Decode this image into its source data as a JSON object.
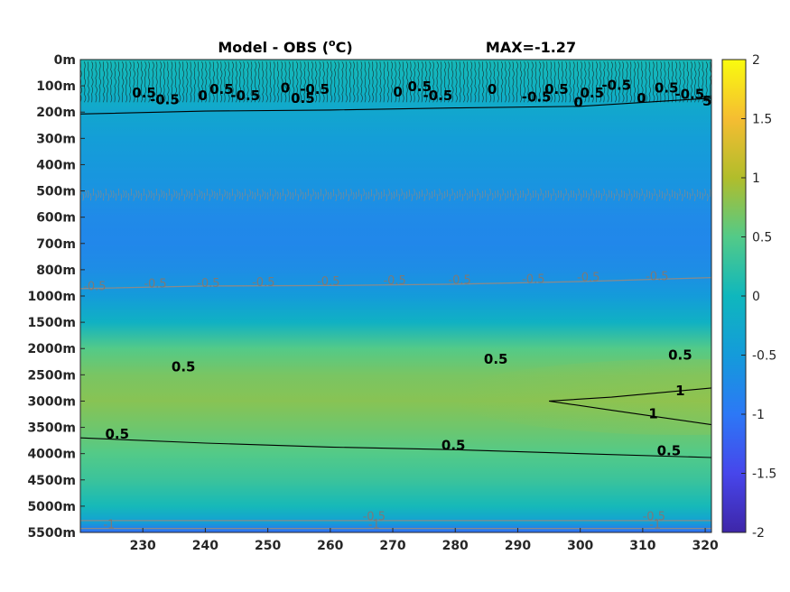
{
  "chart_data": {
    "type": "heatmap",
    "title": "Model - OBS (",
    "title_sup": "o",
    "title_unit": "C)",
    "max_label": "MAX=-1.27",
    "x": {
      "range": [
        220,
        321
      ],
      "ticks": [
        230,
        240,
        250,
        260,
        270,
        280,
        290,
        300,
        310,
        320
      ]
    },
    "y": {
      "depth_labels": [
        "0m",
        "100m",
        "200m",
        "300m",
        "400m",
        "500m",
        "600m",
        "700m",
        "800m",
        "1000m",
        "1500m",
        "2000m",
        "2500m",
        "3000m",
        "3500m",
        "4000m",
        "4500m",
        "5000m",
        "5500m"
      ]
    },
    "colorbar": {
      "range": [
        -2,
        2
      ],
      "ticks": [
        "2",
        "1.5",
        "1",
        "0.5",
        "0",
        "-0.5",
        "-1",
        "-1.5",
        "-2"
      ]
    },
    "value_profile": [
      {
        "level": 0.0,
        "value": 0.05
      },
      {
        "level": 1.2,
        "value": -0.1
      },
      {
        "level": 2.0,
        "value": -0.3
      },
      {
        "level": 3.0,
        "value": -0.45
      },
      {
        "level": 5.0,
        "value": -0.62
      },
      {
        "level": 6.0,
        "value": -0.75
      },
      {
        "level": 7.0,
        "value": -0.78
      },
      {
        "level": 8.0,
        "value": -0.7
      },
      {
        "level": 9.0,
        "value": -0.5
      },
      {
        "level": 10.0,
        "value": -0.1
      },
      {
        "level": 11.0,
        "value": 0.5
      },
      {
        "level": 12.0,
        "value": 0.7
      },
      {
        "level": 13.0,
        "value": 0.78
      },
      {
        "level": 14.0,
        "value": 0.65
      },
      {
        "level": 15.0,
        "value": 0.5
      },
      {
        "level": 16.0,
        "value": 0.32
      },
      {
        "level": 17.0,
        "value": 0.05
      },
      {
        "level": 17.6,
        "value": -0.4
      },
      {
        "level": 18.0,
        "value": -1.1
      }
    ],
    "contours": [
      {
        "value": 0.5,
        "style": "black",
        "points": [
          [
            220,
            2.07
          ],
          [
            240,
            1.96
          ],
          [
            260,
            1.92
          ],
          [
            280,
            1.84
          ],
          [
            300,
            1.78
          ],
          [
            321,
            1.47
          ]
        ]
      },
      {
        "value": 1,
        "style": "black",
        "points": [
          [
            321,
            12.5
          ],
          [
            305,
            12.85
          ],
          [
            295,
            13.0
          ],
          [
            305,
            13.35
          ],
          [
            321,
            13.9
          ]
        ]
      },
      {
        "value": 0.5,
        "style": "black",
        "points": [
          [
            220,
            14.4
          ],
          [
            240,
            14.6
          ],
          [
            260,
            14.75
          ],
          [
            280,
            14.85
          ],
          [
            300,
            15.0
          ],
          [
            321,
            15.15
          ]
        ]
      },
      {
        "value": -0.5,
        "style": "grey",
        "points": [
          [
            220,
            8.72
          ],
          [
            240,
            8.62
          ],
          [
            260,
            8.6
          ],
          [
            280,
            8.55
          ],
          [
            300,
            8.45
          ],
          [
            321,
            8.3
          ]
        ]
      },
      {
        "value": -0.5,
        "style": "grey",
        "points": [
          [
            220,
            17.55
          ],
          [
            321,
            17.55
          ]
        ]
      },
      {
        "value": -1,
        "style": "grey",
        "points": [
          [
            220,
            17.85
          ],
          [
            321,
            17.85
          ]
        ]
      }
    ],
    "contour_labels": [
      {
        "text": "0.5",
        "style": "black",
        "x": 236.5,
        "level": 11.87
      },
      {
        "text": "0.5",
        "style": "black",
        "x": 286.5,
        "level": 11.57
      },
      {
        "text": "0.5",
        "style": "black",
        "x": 316.0,
        "level": 11.43
      },
      {
        "text": "1",
        "style": "black",
        "x": 316.0,
        "level": 12.78
      },
      {
        "text": "1",
        "style": "black",
        "x": 311.7,
        "level": 13.65
      },
      {
        "text": "0.5",
        "style": "black",
        "x": 225.9,
        "level": 14.43
      },
      {
        "text": "0.5",
        "style": "black",
        "x": 279.7,
        "level": 14.85
      },
      {
        "text": "0.5",
        "style": "black",
        "x": 314.2,
        "level": 15.06
      },
      {
        "text": "-0.5",
        "style": "grey",
        "x": 222.3,
        "level": 8.78
      },
      {
        "text": "-0.5",
        "style": "grey",
        "x": 232.0,
        "level": 8.68
      },
      {
        "text": "-0.5",
        "style": "grey",
        "x": 240.5,
        "level": 8.65
      },
      {
        "text": "-0.5",
        "style": "grey",
        "x": 249.3,
        "level": 8.62
      },
      {
        "text": "-0.5",
        "style": "grey",
        "x": 259.7,
        "level": 8.59
      },
      {
        "text": "-0.5",
        "style": "grey",
        "x": 270.3,
        "level": 8.56
      },
      {
        "text": "-0.5",
        "style": "grey",
        "x": 280.7,
        "level": 8.53
      },
      {
        "text": "-0.5",
        "style": "grey",
        "x": 292.5,
        "level": 8.5
      },
      {
        "text": "-0.5",
        "style": "grey",
        "x": 301.3,
        "level": 8.43
      },
      {
        "text": "-0.5",
        "style": "grey",
        "x": 312.3,
        "level": 8.4
      },
      {
        "text": "-0.5",
        "style": "grey",
        "x": 267.0,
        "level": 17.53
      },
      {
        "text": "-0.5",
        "style": "grey",
        "x": 311.8,
        "level": 17.53
      },
      {
        "text": "-1",
        "style": "grey",
        "x": 224.6,
        "level": 17.85
      },
      {
        "text": "-1",
        "style": "grey",
        "x": 267.0,
        "level": 17.85
      },
      {
        "text": "-1",
        "style": "grey",
        "x": 312.0,
        "level": 17.85
      }
    ],
    "noisy_labels_top": [
      {
        "text": "0.5",
        "x": 230.2,
        "level": 1.45
      },
      {
        "text": "-0.5",
        "x": 233.5,
        "level": 1.7
      },
      {
        "text": "0",
        "x": 239.6,
        "level": 1.55
      },
      {
        "text": "0.5",
        "x": 242.6,
        "level": 1.3
      },
      {
        "text": "-0.5",
        "x": 246.4,
        "level": 1.55
      },
      {
        "text": "0",
        "x": 252.8,
        "level": 1.25
      },
      {
        "text": "0.5",
        "x": 255.6,
        "level": 1.65
      },
      {
        "text": "-0.5",
        "x": 257.5,
        "level": 1.3
      },
      {
        "text": "0",
        "x": 270.8,
        "level": 1.4
      },
      {
        "text": "0.5",
        "x": 274.3,
        "level": 1.2
      },
      {
        "text": "-0.5",
        "x": 277.2,
        "level": 1.55
      },
      {
        "text": "0",
        "x": 285.9,
        "level": 1.3
      },
      {
        "text": "-0.5",
        "x": 293.0,
        "level": 1.6
      },
      {
        "text": "0.5",
        "x": 296.2,
        "level": 1.3
      },
      {
        "text": "0",
        "x": 299.7,
        "level": 1.8
      },
      {
        "text": "0.5",
        "x": 301.9,
        "level": 1.45
      },
      {
        "text": "-0.5",
        "x": 305.8,
        "level": 1.15
      },
      {
        "text": "0",
        "x": 309.8,
        "level": 1.65
      },
      {
        "text": "0.5",
        "x": 313.8,
        "level": 1.25
      },
      {
        "text": "-0.5",
        "x": 317.5,
        "level": 1.5
      },
      {
        "text": "5",
        "x": 320.3,
        "level": 1.75
      }
    ]
  }
}
